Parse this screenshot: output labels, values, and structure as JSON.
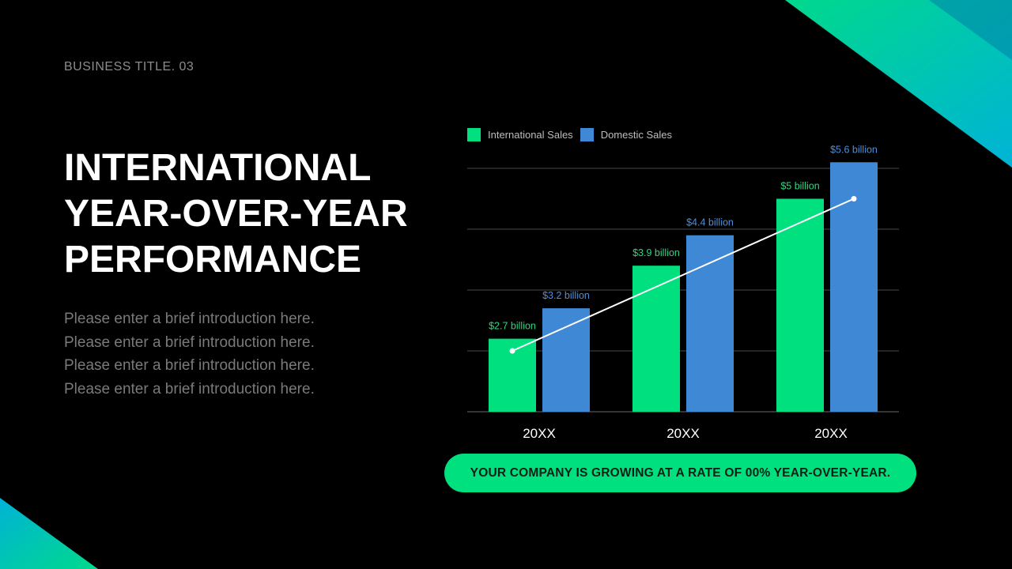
{
  "header": {
    "eyebrow": "BUSINESS TITLE. 03"
  },
  "title": {
    "lines": [
      "INTERNATIONAL",
      "YEAR-OVER-YEAR",
      "PERFORMANCE"
    ]
  },
  "intro": {
    "lines": [
      "Please enter a brief introduction here.",
      "Please enter a brief introduction here.",
      "Please enter a brief introduction here.",
      "Please enter a brief introduction here."
    ]
  },
  "colors": {
    "background": "#000000",
    "international": "#00e07f",
    "domestic": "#3f88d6",
    "trend": "#ffffff",
    "grid": "#4a4a4a",
    "accent_from": "#00d98c",
    "accent_to": "#00b3d6"
  },
  "chart_data": {
    "type": "bar",
    "categories": [
      "20XX",
      "20XX",
      "20XX"
    ],
    "series": [
      {
        "name": "International Sales",
        "values": [
          2.7,
          3.9,
          5.0
        ],
        "labels": [
          "$2.7 billion",
          "$3.9 billion",
          "$5 billion"
        ]
      },
      {
        "name": "Domestic Sales",
        "values": [
          3.2,
          4.4,
          5.6
        ],
        "labels": [
          "$3.2 billion",
          "$4.4 billion",
          "$5.6 billion"
        ]
      }
    ],
    "trend": {
      "type": "line",
      "values": [
        2.5,
        null,
        5.0
      ]
    },
    "ylim": [
      1.5,
      5.5
    ],
    "grid": true,
    "legend": "top-left",
    "title": "",
    "xlabel": "",
    "ylabel": ""
  },
  "footer": {
    "banner": "YOUR COMPANY IS GROWING AT A RATE OF 00% YEAR-OVER-YEAR."
  }
}
